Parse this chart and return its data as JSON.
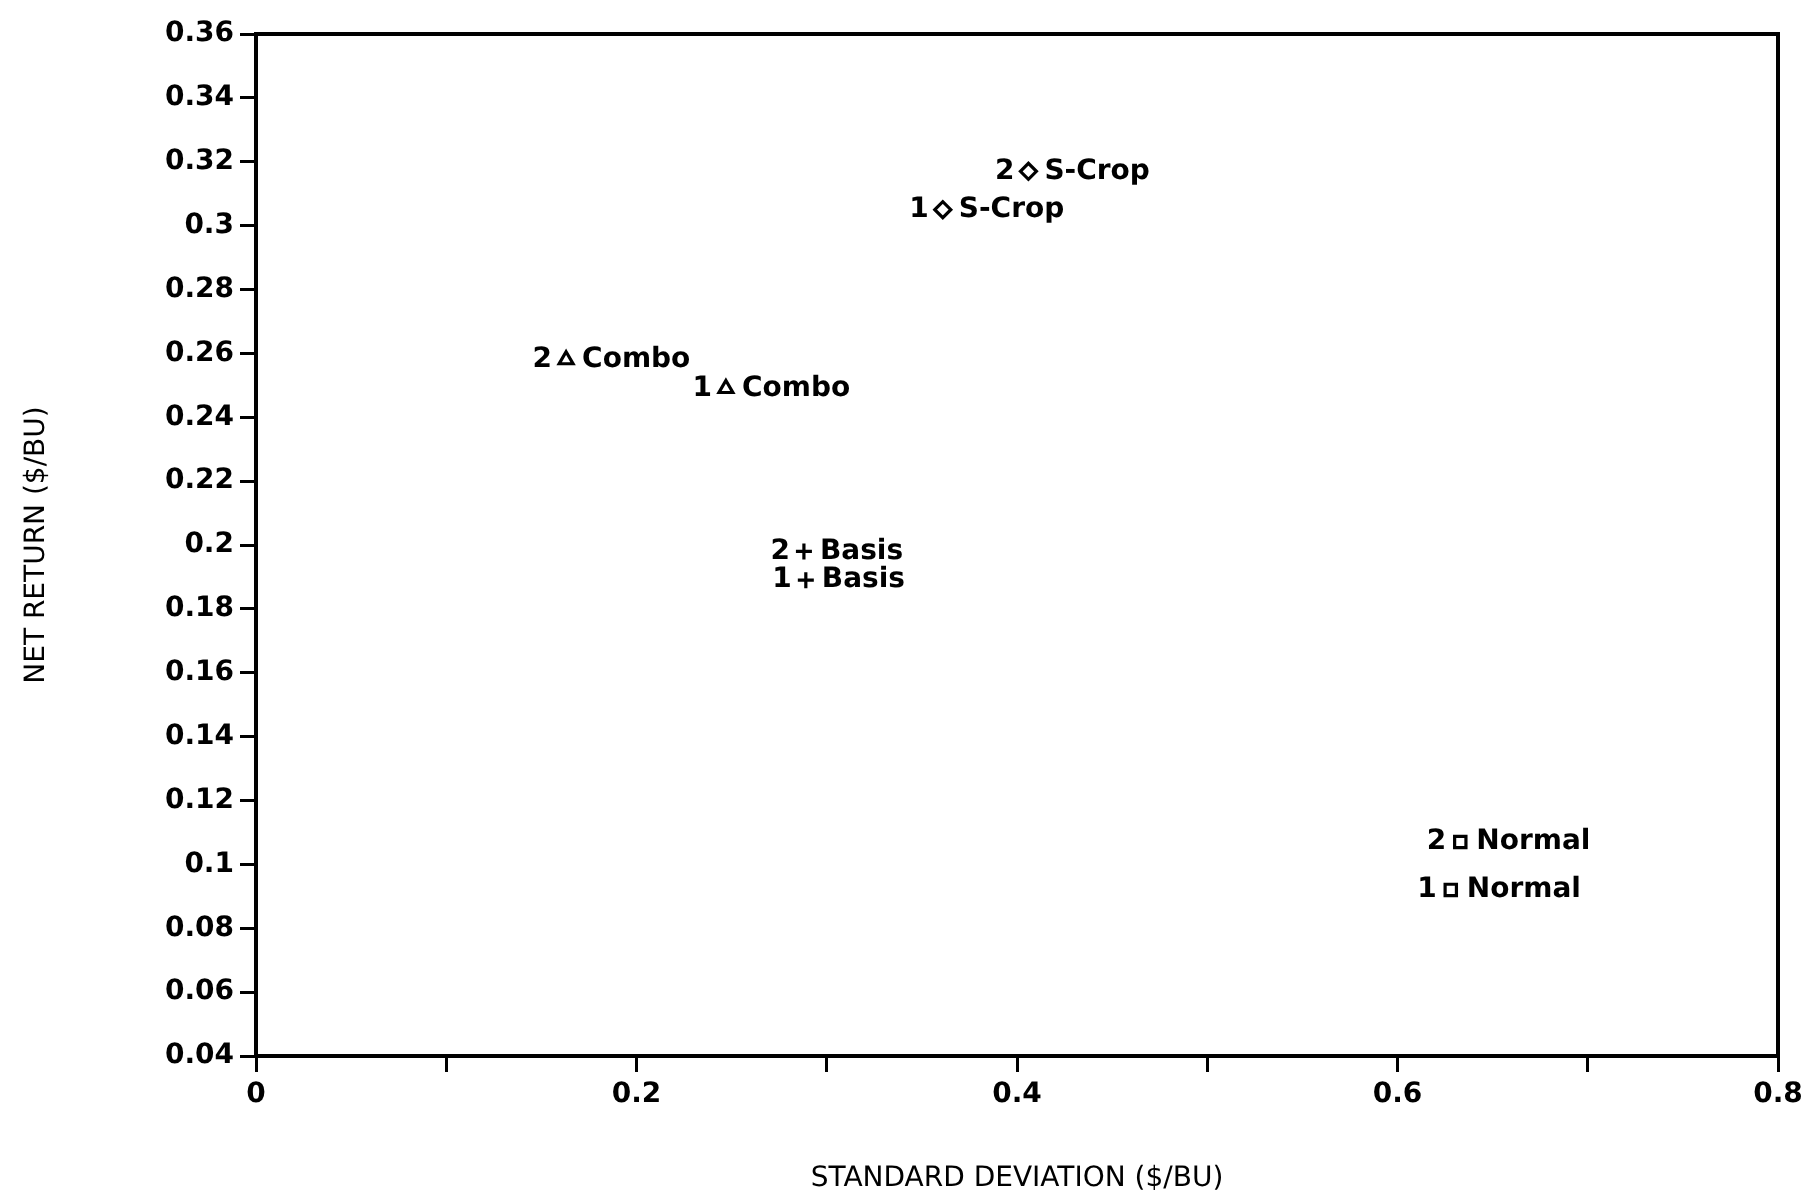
{
  "chart_data": {
    "type": "scatter",
    "xlabel": "STANDARD DEVIATION ($/BU)",
    "ylabel": "NET RETURN ($/BU)",
    "xlim": [
      0,
      0.8
    ],
    "xticks": [
      0,
      {
        "value": 0.1,
        "label": null
      },
      0.2,
      {
        "value": 0.3,
        "label": null
      },
      0.4,
      {
        "value": 0.5,
        "label": null
      },
      0.6,
      {
        "value": 0.7,
        "label": null
      },
      0.8
    ],
    "ylim": [
      0.04,
      0.36
    ],
    "yticks": [
      0.04,
      0.06,
      0.08,
      0.1,
      0.12,
      0.14,
      0.16,
      0.18,
      0.2,
      0.22,
      0.24,
      0.26,
      0.28,
      0.3,
      0.32,
      0.34,
      0.36
    ],
    "grid": false,
    "legend": false,
    "series": [
      {
        "name": "S-Crop",
        "color": "#000000",
        "marker": "diamond",
        "x": [
          0.406,
          0.361
        ],
        "values": [
          0.317,
          0.305
        ]
      },
      {
        "name": "Combo",
        "color": "#000000",
        "marker": "triangle",
        "x": [
          0.163,
          0.247
        ],
        "values": [
          0.258,
          0.249
        ]
      },
      {
        "name": "Basis",
        "color": "#000000",
        "marker": "cross",
        "x": [
          0.288,
          0.289
        ],
        "values": [
          0.198,
          0.189
        ]
      },
      {
        "name": "Normal",
        "color": "#000000",
        "marker": "square",
        "x": [
          0.633,
          0.628
        ],
        "values": [
          0.107,
          0.092
        ]
      }
    ],
    "annotations": [
      {
        "text": "2",
        "x": 0.406,
        "y": 0.317
      },
      {
        "text": "1",
        "x": 0.361,
        "y": 0.305
      },
      {
        "text": "2",
        "x": 0.163,
        "y": 0.258
      },
      {
        "text": "1",
        "x": 0.247,
        "y": 0.249
      },
      {
        "text": "2",
        "x": 0.288,
        "y": 0.198
      },
      {
        "text": "1",
        "x": 0.289,
        "y": 0.189
      },
      {
        "text": "2",
        "x": 0.633,
        "y": 0.107
      },
      {
        "text": "1",
        "x": 0.628,
        "y": 0.092
      }
    ]
  }
}
